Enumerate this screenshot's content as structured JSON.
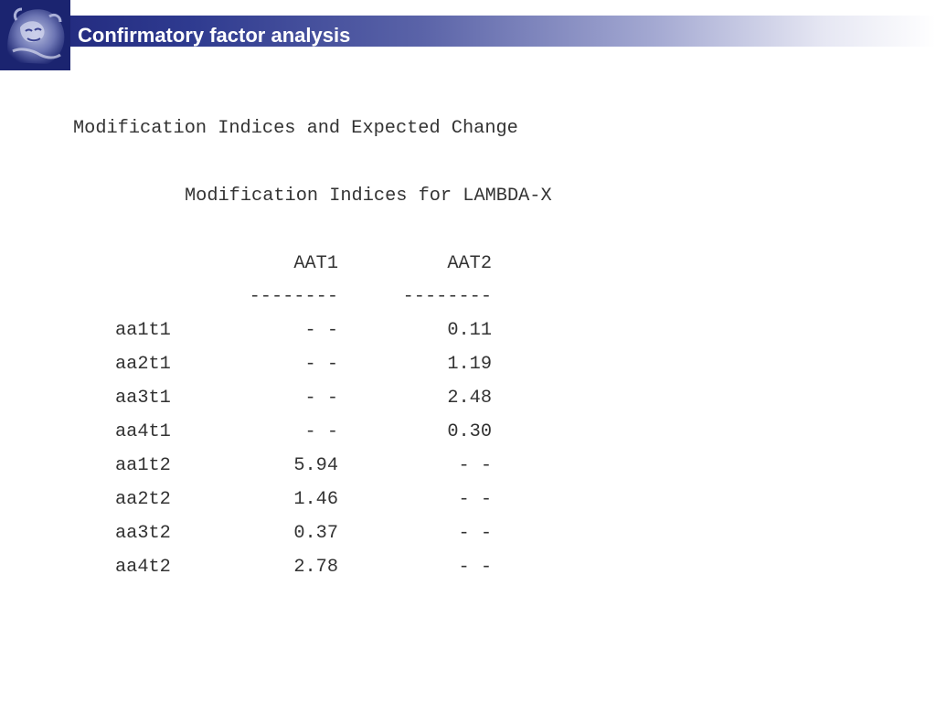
{
  "header": {
    "title": "Confirmatory factor analysis",
    "logo_icon": "lion-statue-icon",
    "bar_color": "#1e2478"
  },
  "content": {
    "heading": "Modification Indices and Expected Change",
    "subheading": "Modification Indices for LAMBDA-X",
    "columns": [
      "AAT1",
      "AAT2"
    ],
    "separator": "--------",
    "rows": [
      {
        "label": "aa1t1",
        "values": [
          "- -",
          "0.11"
        ]
      },
      {
        "label": "aa2t1",
        "values": [
          "- -",
          "1.19"
        ]
      },
      {
        "label": "aa3t1",
        "values": [
          "- -",
          "2.48"
        ]
      },
      {
        "label": "aa4t1",
        "values": [
          "- -",
          "0.30"
        ]
      },
      {
        "label": "aa1t2",
        "values": [
          "5.94",
          "- -"
        ]
      },
      {
        "label": "aa2t2",
        "values": [
          "1.46",
          "- -"
        ]
      },
      {
        "label": "aa3t2",
        "values": [
          "0.37",
          "- -"
        ]
      },
      {
        "label": "aa4t2",
        "values": [
          "2.78",
          "- -"
        ]
      }
    ]
  }
}
